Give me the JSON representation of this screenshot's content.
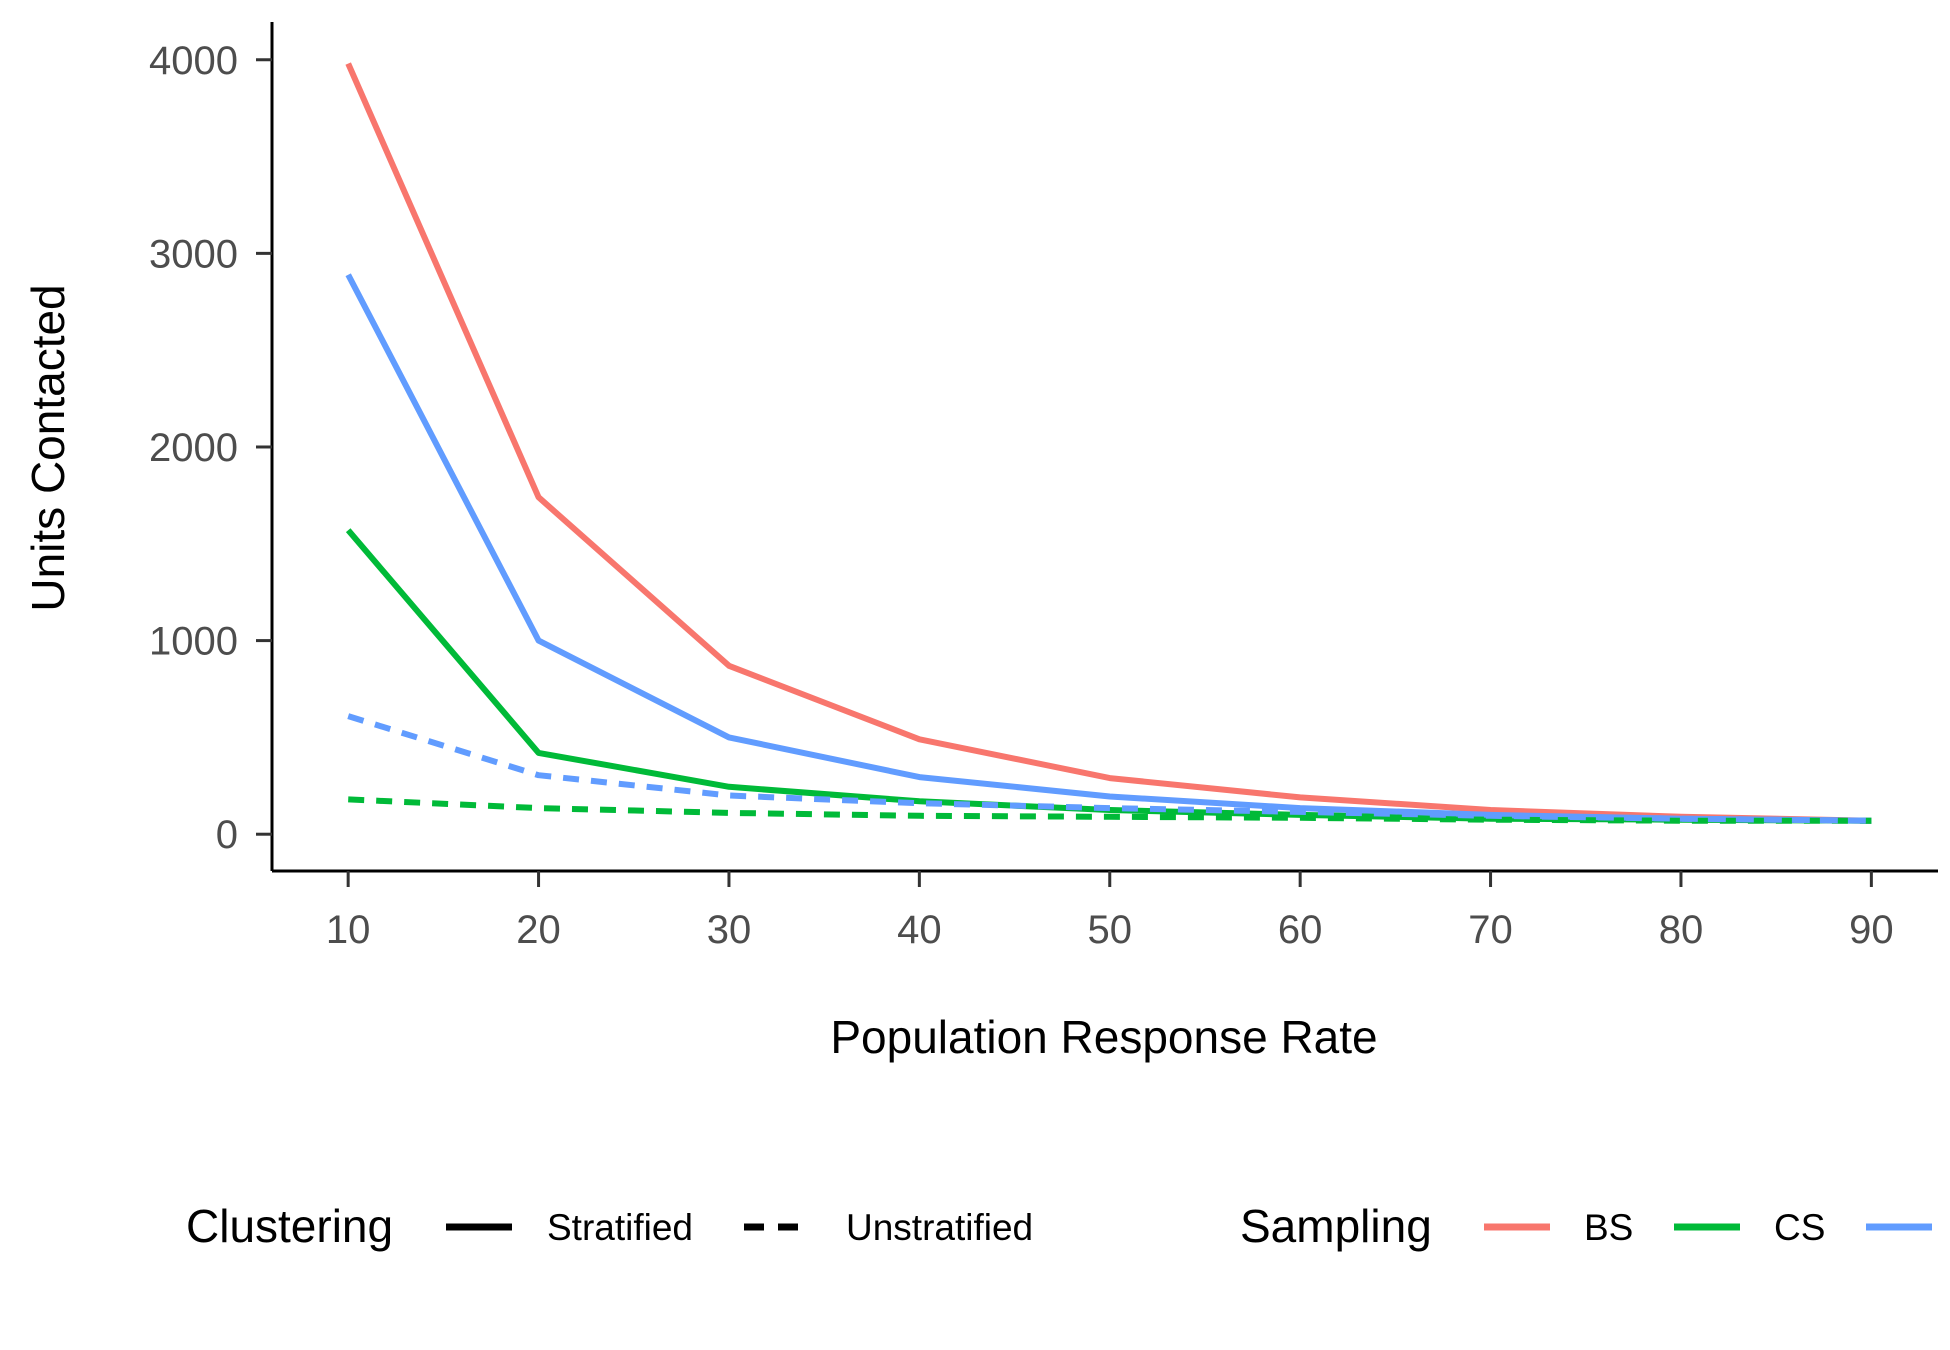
{
  "chart_data": {
    "type": "line",
    "xlabel": "Population Response Rate",
    "ylabel": "Units Contacted",
    "x": [
      10,
      20,
      30,
      40,
      50,
      60,
      70,
      80,
      90
    ],
    "x_ticks": [
      "10",
      "20",
      "30",
      "40",
      "50",
      "60",
      "70",
      "80",
      "90"
    ],
    "y_ticks": [
      "0",
      "1000",
      "2000",
      "3000",
      "4000"
    ],
    "xlim": [
      6,
      93.5
    ],
    "ylim": [
      -190,
      4195
    ],
    "grid": false,
    "legend_position": "bottom",
    "series": [
      {
        "sampling": "BS",
        "clustering": "Stratified",
        "color": "#F8766D",
        "dash": "solid",
        "values": [
          3980,
          1740,
          870,
          490,
          290,
          190,
          125,
          90,
          70
        ]
      },
      {
        "sampling": "CS",
        "clustering": "Stratified",
        "color": "#00BA38",
        "dash": "solid",
        "values": [
          1570,
          420,
          245,
          170,
          125,
          100,
          80,
          75,
          70
        ]
      },
      {
        "sampling": "",
        "clustering": "Stratified",
        "color": "#619CFF",
        "dash": "solid",
        "values": [
          2890,
          1000,
          500,
          295,
          195,
          135,
          100,
          80,
          70
        ]
      },
      {
        "sampling": "CS",
        "clustering": "Unstratified",
        "color": "#00BA38",
        "dash": "dashed",
        "values": [
          180,
          135,
          110,
          95,
          90,
          85,
          75,
          70,
          70
        ]
      },
      {
        "sampling": "",
        "clustering": "Unstratified",
        "color": "#619CFF",
        "dash": "dashed",
        "values": [
          610,
          305,
          200,
          160,
          135,
          115,
          95,
          80,
          70
        ]
      }
    ]
  },
  "legend": {
    "clustering_title": "Clustering",
    "clustering_items": [
      {
        "label": "Stratified",
        "dash": "solid"
      },
      {
        "label": "Unstratified",
        "dash": "dashed"
      }
    ],
    "sampling_title": "Sampling",
    "sampling_items": [
      {
        "label": "BS",
        "color": "#F8766D"
      },
      {
        "label": "CS",
        "color": "#00BA38"
      },
      {
        "label": "",
        "color": "#619CFF"
      }
    ]
  }
}
